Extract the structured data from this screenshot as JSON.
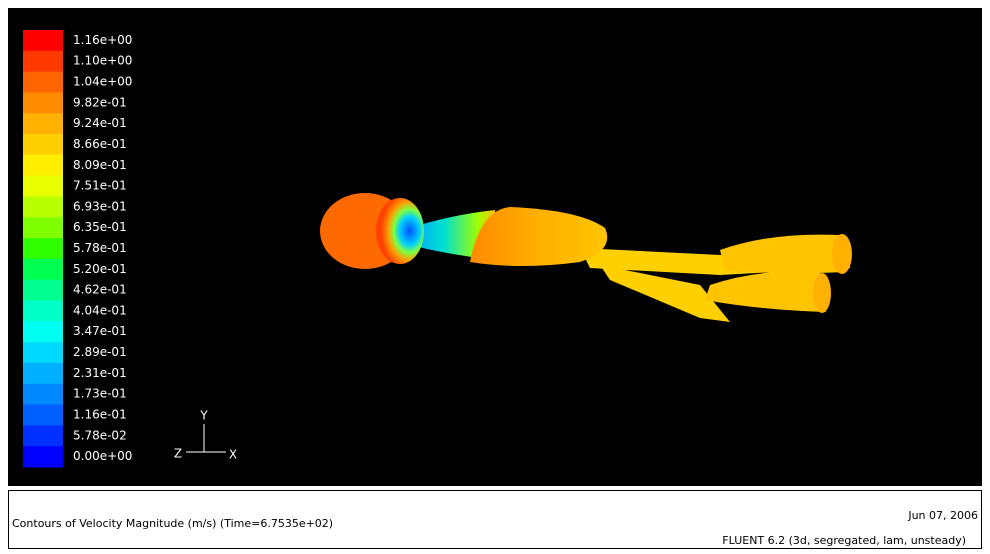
{
  "colorbar": {
    "labels": [
      "1.16e+00",
      "1.10e+00",
      "1.04e+00",
      "9.82e-01",
      "9.24e-01",
      "8.66e-01",
      "8.09e-01",
      "7.51e-01",
      "6.93e-01",
      "6.35e-01",
      "5.78e-01",
      "5.20e-01",
      "4.62e-01",
      "4.04e-01",
      "3.47e-01",
      "2.89e-01",
      "2.31e-01",
      "1.73e-01",
      "1.16e-01",
      "5.78e-02",
      "0.00e+00"
    ]
  },
  "triad": {
    "y": "Y",
    "z": "Z",
    "x": "X"
  },
  "footer": {
    "caption": "Contours of Velocity Magnitude (m/s)  (Time=6.7535e+02)",
    "date": "Jun 07, 2006",
    "version": "FLUENT 6.2 (3d, segregated, lam, unsteady)"
  }
}
